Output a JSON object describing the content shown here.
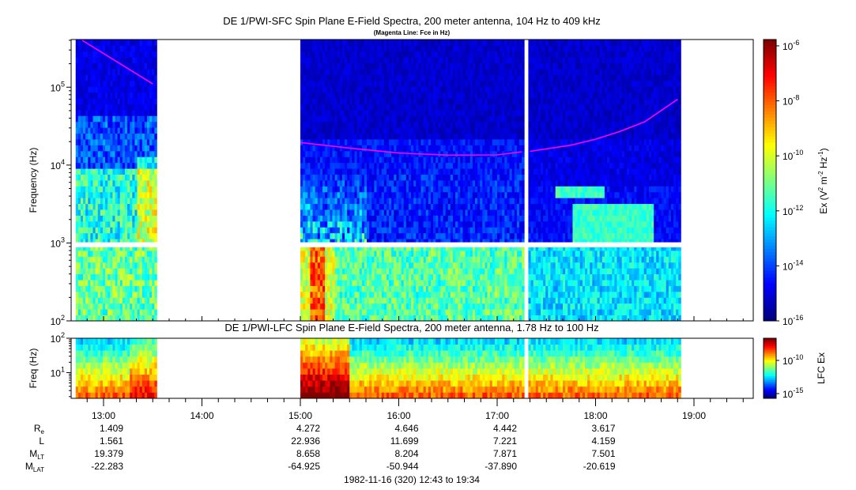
{
  "chart_data": [
    {
      "type": "heatmap",
      "title": "DE 1/PWI-SFC  Spin Plane E-Field Spectra, 200 meter antenna, 104 Hz to 409 kHz",
      "subtitle": "(Magenta Line: Fce in Hz)",
      "ylabel": "Frequency (Hz)",
      "yscale": "log",
      "ylim": [
        100,
        409000
      ],
      "y_ticks": [
        {
          "value": 100,
          "base": "10",
          "exp": "2"
        },
        {
          "value": 1000,
          "base": "10",
          "exp": "3"
        },
        {
          "value": 10000,
          "base": "10",
          "exp": "4"
        },
        {
          "value": 100000,
          "base": "10",
          "exp": "5"
        }
      ],
      "colorbar": {
        "label": "Ex (V² m⁻² Hz⁻¹)",
        "label_parts": {
          "a": "Ex (V",
          "b": "2",
          "c": " m",
          "d": "-2",
          "e": " Hz",
          "f": "-1",
          "g": ")"
        },
        "scale": "log",
        "range": [
          1e-16,
          1e-06
        ],
        "ticks": [
          {
            "base": "10",
            "exp": "-6"
          },
          {
            "base": "10",
            "exp": "-8"
          },
          {
            "base": "10",
            "exp": "-10"
          },
          {
            "base": "10",
            "exp": "-12"
          },
          {
            "base": "10",
            "exp": "-14"
          },
          {
            "base": "10",
            "exp": "-16"
          }
        ],
        "colors": [
          "#00007f",
          "#0000ff",
          "#007fff",
          "#00ffff",
          "#7fff7f",
          "#ffff00",
          "#ff7f00",
          "#ff0000",
          "#7f0000"
        ]
      },
      "data_coverage": [
        {
          "start": "12:43",
          "end": "13:32"
        },
        {
          "start": "15:00",
          "end": "17:16"
        },
        {
          "start": "17:19",
          "end": "18:52"
        }
      ],
      "data_gap_band_hz": [
        880,
        1020
      ],
      "fce_line": {
        "color": "#ff00ff",
        "segments": [
          {
            "times": [
              "12:47",
              "13:30"
            ],
            "freq_hz": [
              400000,
              110000
            ]
          },
          {
            "times": [
              "15:00",
              "15:30",
              "16:00",
              "16:30",
              "17:00",
              "17:15"
            ],
            "freq_hz": [
              19500,
              16500,
              14300,
              13400,
              13500,
              14800
            ]
          },
          {
            "times": [
              "17:20",
              "17:45",
              "18:00",
              "18:15",
              "18:30",
              "18:50"
            ],
            "freq_hz": [
              15000,
              18000,
              21500,
              27000,
              36000,
              70000
            ]
          }
        ]
      }
    },
    {
      "type": "heatmap",
      "title": "DE 1/PWI-LFC  Spin Plane E-Field Spectra, 200 meter antenna, 1.78 Hz to 100 Hz",
      "ylabel": "Freq (Hz)",
      "yscale": "log",
      "ylim": [
        1.78,
        100
      ],
      "y_ticks": [
        {
          "value": 10,
          "base": "10",
          "exp": "1"
        },
        {
          "value": 100,
          "base": "10",
          "exp": "2"
        }
      ],
      "colorbar": {
        "label": "LFC Ex",
        "scale": "log",
        "ticks": [
          {
            "base": "10",
            "exp": "-10"
          },
          {
            "base": "10",
            "exp": "-15"
          }
        ]
      },
      "data_coverage": [
        {
          "start": "12:43",
          "end": "13:32"
        },
        {
          "start": "15:00",
          "end": "17:16"
        },
        {
          "start": "17:19",
          "end": "18:52"
        }
      ]
    }
  ],
  "time_axis": {
    "ticks": [
      "13:00",
      "14:00",
      "15:00",
      "16:00",
      "17:00",
      "18:00",
      "19:00"
    ],
    "footer": "1982-11-16 (320) 12:43 to 19:34"
  },
  "ephemeris": {
    "labels": {
      "re": {
        "main": "R",
        "sub": "e"
      },
      "l": {
        "main": "L",
        "sub": ""
      },
      "mlt": {
        "main": "M",
        "sub": "LT"
      },
      "mlat": {
        "main": "M",
        "sub": "LAT"
      }
    },
    "columns": [
      "13:00",
      "15:00",
      "16:00",
      "17:00",
      "18:00"
    ],
    "rows": {
      "re": [
        "1.409",
        "4.272",
        "4.646",
        "4.442",
        "3.617"
      ],
      "l": [
        "1.561",
        "22.936",
        "11.699",
        "7.221",
        "4.159"
      ],
      "mlt": [
        "19.379",
        "8.658",
        "8.204",
        "7.871",
        "7.501"
      ],
      "mlat": [
        "-22.283",
        "-64.925",
        "-50.944",
        "-37.890",
        "-20.619"
      ]
    }
  }
}
